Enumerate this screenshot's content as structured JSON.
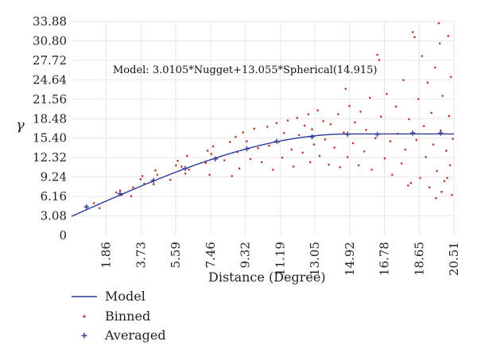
{
  "chart_data": {
    "type": "scatter",
    "xlabel": "Distance (Degree)",
    "ylabel": "γ",
    "annotation": "Model: 3.0105*Nugget+13.055*Spherical(14.915)",
    "xlim": [
      0,
      20.51
    ],
    "ylim": [
      0,
      33.88
    ],
    "x_ticks": [
      "1.86",
      "3.73",
      "5.59",
      "7.46",
      "9.32",
      "11.19",
      "13.05",
      "14.92",
      "16.78",
      "18.65",
      "20.51"
    ],
    "y_ticks": [
      "33.88",
      "30.80",
      "27.72",
      "24.64",
      "21.56",
      "18.48",
      "15.40",
      "12.32",
      "9.24",
      "6.16",
      "3.08",
      "0"
    ],
    "grid": true,
    "legend_position": "bottom-left",
    "colors": {
      "model": "#2b3a9a",
      "binned": "#c0392b",
      "averaged": "#3b3f9e",
      "grid": "#e6e6e6"
    },
    "model": {
      "nugget": 3.0105,
      "partial_sill": 13.055,
      "range": 14.915,
      "type": "spherical"
    },
    "series": [
      {
        "name": "Model",
        "kind": "line"
      },
      {
        "name": "Binned",
        "kind": "points",
        "points": [
          [
            0.8,
            4.6
          ],
          [
            1.2,
            5.1
          ],
          [
            1.5,
            4.3
          ],
          [
            2.4,
            6.8
          ],
          [
            2.6,
            7.1
          ],
          [
            2.7,
            6.4
          ],
          [
            3.2,
            6.2
          ],
          [
            3.3,
            7.6
          ],
          [
            3.7,
            8.9
          ],
          [
            3.8,
            9.4
          ],
          [
            3.9,
            8.2
          ],
          [
            4.4,
            8.1
          ],
          [
            4.5,
            10.3
          ],
          [
            4.6,
            9.6
          ],
          [
            5.3,
            8.8
          ],
          [
            5.6,
            11.1
          ],
          [
            5.7,
            11.8
          ],
          [
            5.9,
            10.9
          ],
          [
            6.1,
            9.8
          ],
          [
            6.2,
            12.6
          ],
          [
            6.3,
            10.4
          ],
          [
            7.2,
            11.5
          ],
          [
            7.3,
            13.4
          ],
          [
            7.4,
            9.6
          ],
          [
            7.5,
            12.9
          ],
          [
            7.6,
            14.1
          ],
          [
            7.8,
            12.2
          ],
          [
            8.2,
            11.9
          ],
          [
            8.5,
            14.8
          ],
          [
            8.6,
            9.4
          ],
          [
            8.8,
            15.6
          ],
          [
            8.9,
            13.2
          ],
          [
            9.0,
            10.6
          ],
          [
            9.2,
            16.3
          ],
          [
            9.4,
            14.9
          ],
          [
            9.6,
            12.1
          ],
          [
            9.8,
            16.9
          ],
          [
            10.0,
            13.8
          ],
          [
            10.2,
            11.6
          ],
          [
            10.5,
            17.2
          ],
          [
            10.6,
            14.2
          ],
          [
            10.8,
            10.4
          ],
          [
            11.0,
            17.8
          ],
          [
            11.1,
            14.8
          ],
          [
            11.3,
            12.3
          ],
          [
            11.4,
            16.2
          ],
          [
            11.6,
            18.2
          ],
          [
            11.8,
            13.6
          ],
          [
            11.9,
            10.9
          ],
          [
            12.1,
            18.6
          ],
          [
            12.2,
            15.9
          ],
          [
            12.4,
            13.1
          ],
          [
            12.5,
            17.4
          ],
          [
            12.7,
            19.2
          ],
          [
            12.8,
            11.6
          ],
          [
            12.9,
            16.8
          ],
          [
            13.0,
            14.4
          ],
          [
            13.2,
            19.8
          ],
          [
            13.3,
            12.6
          ],
          [
            13.5,
            18.1
          ],
          [
            13.6,
            15.2
          ],
          [
            13.8,
            11.2
          ],
          [
            13.9,
            17.6
          ],
          [
            14.1,
            13.9
          ],
          [
            14.3,
            19.2
          ],
          [
            14.4,
            10.8
          ],
          [
            14.6,
            16.3
          ],
          [
            14.7,
            23.2
          ],
          [
            14.8,
            12.4
          ],
          [
            14.9,
            20.5
          ],
          [
            15.1,
            14.6
          ],
          [
            15.2,
            17.9
          ],
          [
            15.4,
            11.1
          ],
          [
            15.5,
            19.6
          ],
          [
            15.7,
            13.3
          ],
          [
            15.8,
            16.7
          ],
          [
            16.0,
            21.8
          ],
          [
            16.1,
            10.4
          ],
          [
            16.3,
            15.4
          ],
          [
            16.4,
            28.6
          ],
          [
            16.5,
            27.8
          ],
          [
            16.6,
            18.8
          ],
          [
            16.8,
            12.2
          ],
          [
            16.9,
            22.4
          ],
          [
            17.1,
            14.9
          ],
          [
            17.2,
            9.6
          ],
          [
            17.4,
            20.4
          ],
          [
            17.5,
            16.1
          ],
          [
            17.7,
            11.4
          ],
          [
            17.8,
            24.6
          ],
          [
            17.9,
            13.6
          ],
          [
            18.1,
            18.4
          ],
          [
            18.2,
            8.3
          ],
          [
            18.3,
            32.2
          ],
          [
            18.4,
            31.4
          ],
          [
            18.5,
            15.1
          ],
          [
            18.6,
            21.6
          ],
          [
            18.7,
            9.1
          ],
          [
            18.8,
            28.4
          ],
          [
            18.9,
            17.3
          ],
          [
            19.0,
            12.4
          ],
          [
            19.1,
            24.2
          ],
          [
            19.2,
            7.6
          ],
          [
            19.3,
            19.4
          ],
          [
            19.4,
            14.4
          ],
          [
            19.5,
            26.6
          ],
          [
            19.6,
            10.2
          ],
          [
            19.7,
            33.6
          ],
          [
            19.75,
            30.4
          ],
          [
            19.8,
            16.6
          ],
          [
            19.9,
            22.1
          ],
          [
            20.0,
            8.6
          ],
          [
            20.1,
            13.4
          ],
          [
            20.2,
            31.6
          ],
          [
            20.25,
            18.9
          ],
          [
            20.3,
            11.1
          ],
          [
            20.35,
            25.1
          ],
          [
            20.4,
            6.4
          ],
          [
            20.45,
            15.3
          ],
          [
            19.85,
            6.9
          ],
          [
            18.05,
            7.9
          ],
          [
            20.15,
            9.1
          ],
          [
            19.55,
            5.9
          ]
        ]
      },
      {
        "name": "Averaged",
        "kind": "points",
        "points": [
          [
            0.8,
            4.5
          ],
          [
            2.6,
            6.6
          ],
          [
            4.4,
            8.7
          ],
          [
            6.1,
            10.6
          ],
          [
            7.7,
            12.1
          ],
          [
            9.4,
            13.7
          ],
          [
            11.0,
            14.9
          ],
          [
            12.9,
            15.6
          ],
          [
            14.8,
            16.0
          ],
          [
            16.4,
            16.0
          ],
          [
            18.3,
            16.2
          ],
          [
            19.8,
            16.2
          ]
        ]
      }
    ]
  }
}
